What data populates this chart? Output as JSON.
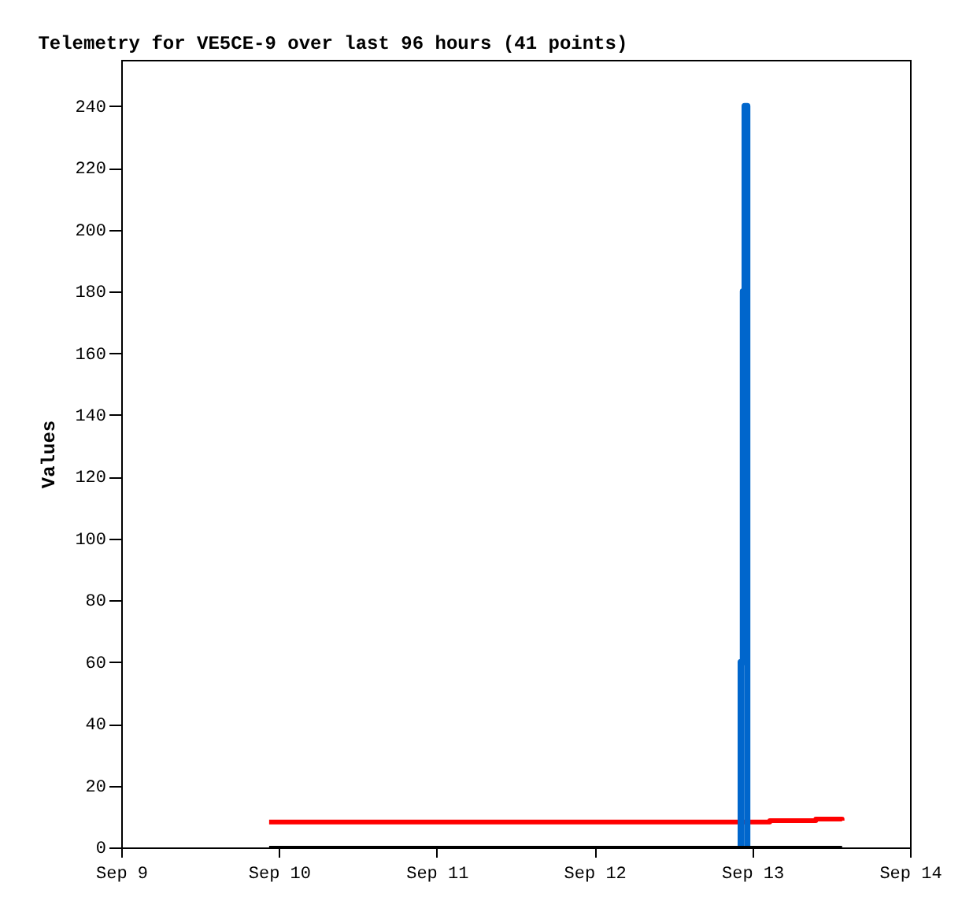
{
  "chart_data": {
    "type": "step",
    "title": "Telemetry for VE5CE-9 over last 96 hours (41 points)",
    "ylabel": "Values",
    "xlim": [
      "--09-09",
      "--09-14"
    ],
    "xticks": [
      {
        "value": "--09-09",
        "label": "Sep 9"
      },
      {
        "value": "--09-10",
        "label": "Sep 10"
      },
      {
        "value": "--09-11",
        "label": "Sep 11"
      },
      {
        "value": "--09-12",
        "label": "Sep 12"
      },
      {
        "value": "--09-13",
        "label": "Sep 13"
      },
      {
        "value": "--09-14",
        "label": "Sep 14"
      }
    ],
    "ylim": [
      0,
      255
    ],
    "yticks": [
      0,
      20,
      40,
      60,
      80,
      100,
      120,
      140,
      160,
      180,
      200,
      220,
      240
    ],
    "grid": false,
    "series": [
      {
        "color": "#ff0000",
        "x": [
          "--09-09T22:30",
          "--09-13T02:40",
          "--09-13T09:40",
          "--09-13T13:40"
        ],
        "values": [
          8.2,
          8.7,
          9.2,
          8.7
        ]
      },
      {
        "color": "#0066cc",
        "x": [
          "--09-12T22:00",
          "--09-12T22:15",
          "--09-12T22:35",
          "--09-12T22:51",
          "--09-12T23:14"
        ],
        "values": [
          0,
          60,
          180,
          240,
          0
        ]
      },
      {
        "color": "#000000",
        "x": [
          "--09-09T22:30",
          "--09-13T13:40"
        ],
        "values": [
          0,
          0
        ]
      }
    ]
  }
}
